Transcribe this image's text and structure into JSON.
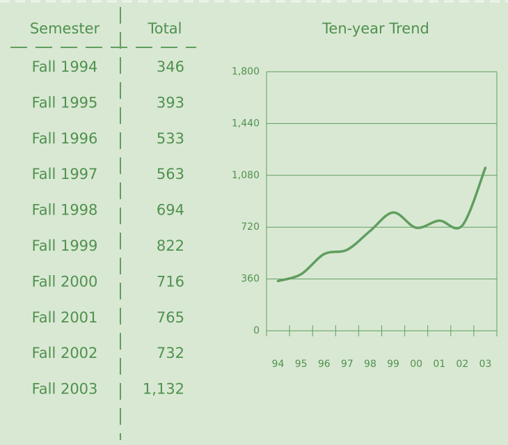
{
  "table": {
    "headers": [
      "Semester",
      "Total"
    ],
    "rows": [
      [
        "Fall 1994",
        "346"
      ],
      [
        "Fall 1995",
        "393"
      ],
      [
        "Fall 1996",
        "533"
      ],
      [
        "Fall 1997",
        "563"
      ],
      [
        "Fall 1998",
        "694"
      ],
      [
        "Fall 1999",
        "822"
      ],
      [
        "Fall 2000",
        "716"
      ],
      [
        "Fall 2001",
        "765"
      ],
      [
        "Fall 2002",
        "732"
      ],
      [
        "Fall 2003",
        "1,132"
      ]
    ]
  },
  "chart_data": {
    "type": "line",
    "title": "Ten-year Trend",
    "categories": [
      "94",
      "95",
      "96",
      "97",
      "98",
      "99",
      "00",
      "01",
      "02",
      "03"
    ],
    "series": [
      {
        "color": "#5f9e5f",
        "values": [
          346,
          393,
          533,
          563,
          694,
          822,
          716,
          765,
          732,
          1132
        ]
      }
    ],
    "ylim": [
      0,
      1800
    ],
    "yticks": [
      0,
      360,
      720,
      {
        "value": 1080,
        "label": "1,080"
      },
      {
        "value": 1440,
        "label": "1,440"
      },
      {
        "value": 1800,
        "label": "1,800"
      }
    ],
    "grid": true
  }
}
